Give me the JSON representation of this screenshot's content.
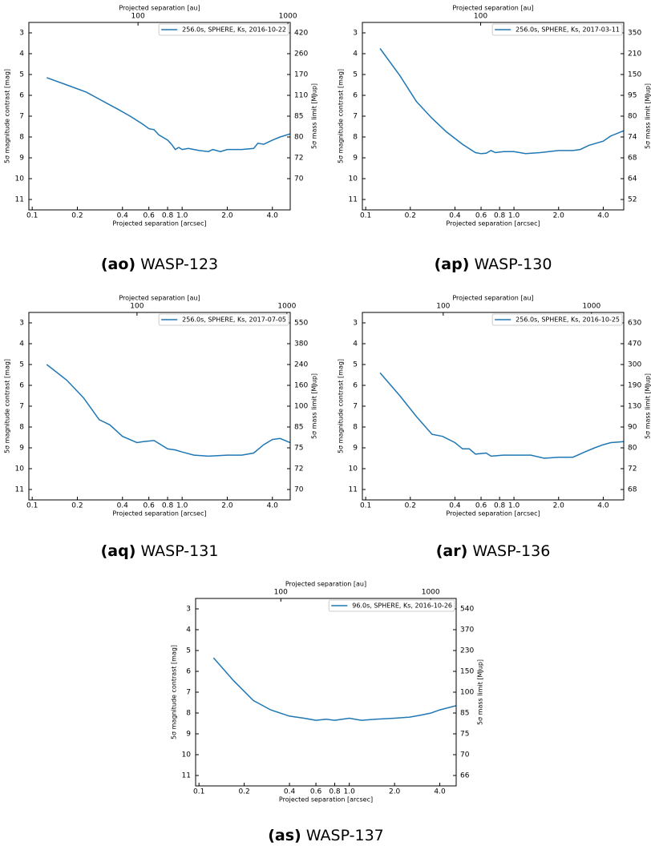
{
  "chart_data": [
    {
      "type": "line",
      "label": "(ao)",
      "title": "WASP-123",
      "xlabel": "Projected separation [arcsec]",
      "ylabel": "5σ magnitude contrast [mag]",
      "x2label": "Projected separation [au]",
      "y2label": "5σ mass limit [MJup]",
      "log_x": true,
      "invert_y": true,
      "legend": "upper right",
      "xlim": [
        0.095,
        5.26
      ],
      "xticks": [
        0.1,
        0.2,
        0.4,
        0.6,
        0.8,
        {
          "value": 1.0,
          "label": "1.0"
        },
        {
          "value": 2.0,
          "label": "2.0"
        },
        {
          "value": 4.0,
          "label": "4.0"
        }
      ],
      "ylim": [
        2.5,
        11.5
      ],
      "yticks": [
        3,
        4,
        5,
        6,
        7,
        8,
        9,
        10,
        11
      ],
      "x2lim": [
        18.7,
        1036
      ],
      "x2ticks": [
        100,
        1000
      ],
      "y2ticks": [
        420,
        260,
        170,
        110,
        85,
        80,
        72,
        70
      ],
      "series": [
        {
          "name": "256.0s, SPHERE, Ks, 2016-10-22",
          "color": "#1f77b4",
          "x": [
            0.125,
            0.17,
            0.23,
            0.3,
            0.38,
            0.45,
            0.55,
            0.6,
            0.65,
            0.7,
            0.8,
            0.85,
            0.9,
            0.95,
            1.0,
            1.1,
            1.3,
            1.5,
            1.6,
            1.8,
            2.0,
            2.5,
            3.0,
            3.2,
            3.5,
            4.0,
            4.5,
            5.26
          ],
          "values": [
            5.15,
            5.5,
            5.85,
            6.3,
            6.7,
            7.0,
            7.4,
            7.6,
            7.65,
            7.9,
            8.15,
            8.35,
            8.6,
            8.5,
            8.6,
            8.55,
            8.65,
            8.7,
            8.6,
            8.7,
            8.6,
            8.6,
            8.55,
            8.3,
            8.35,
            8.15,
            8.0,
            7.85
          ]
        }
      ]
    },
    {
      "type": "line",
      "label": "(ap)",
      "title": "WASP-130",
      "xlabel": "Projected separation [arcsec]",
      "ylabel": "5σ magnitude contrast [mag]",
      "x2label": "Projected separation [au]",
      "y2label": "5σ mass limit [MJup]",
      "log_x": true,
      "invert_y": true,
      "legend": "upper right",
      "xlim": [
        0.095,
        5.5
      ],
      "xticks": [
        0.1,
        0.2,
        0.4,
        0.6,
        0.8,
        {
          "value": 1.0,
          "label": "1.0"
        },
        {
          "value": 2.0,
          "label": "2.0"
        },
        {
          "value": 4.0,
          "label": "4.0"
        }
      ],
      "ylim": [
        2.5,
        11.5
      ],
      "yticks": [
        3,
        4,
        5,
        6,
        7,
        8,
        9,
        10,
        11
      ],
      "x2lim": [
        16,
        918
      ],
      "x2ticks": [
        100
      ],
      "y2ticks": [
        350,
        210,
        150,
        95,
        80,
        74,
        68,
        64,
        52
      ],
      "series": [
        {
          "name": "256.0s, SPHERE, Ks, 2017-03-11",
          "color": "#1f77b4",
          "x": [
            0.125,
            0.17,
            0.22,
            0.28,
            0.35,
            0.45,
            0.55,
            0.6,
            0.65,
            0.7,
            0.75,
            0.85,
            1.0,
            1.2,
            1.5,
            2.0,
            2.5,
            2.8,
            3.2,
            4.0,
            4.5,
            5.5
          ],
          "values": [
            3.75,
            5.05,
            6.3,
            7.1,
            7.75,
            8.35,
            8.75,
            8.8,
            8.78,
            8.65,
            8.75,
            8.7,
            8.7,
            8.8,
            8.75,
            8.65,
            8.65,
            8.6,
            8.4,
            8.2,
            7.95,
            7.7
          ]
        }
      ]
    },
    {
      "type": "line",
      "label": "(aq)",
      "title": "WASP-131",
      "xlabel": "Projected separation [arcsec]",
      "ylabel": "5σ magnitude contrast [mag]",
      "x2label": "Projected separation [au]",
      "y2label": "5σ mass limit [MJup]",
      "log_x": true,
      "invert_y": true,
      "legend": "upper right",
      "xlim": [
        0.095,
        5.26
      ],
      "xticks": [
        0.1,
        0.2,
        0.4,
        0.6,
        0.8,
        {
          "value": 1.0,
          "label": "1.0"
        },
        {
          "value": 2.0,
          "label": "2.0"
        },
        {
          "value": 4.0,
          "label": "4.0"
        }
      ],
      "ylim": [
        2.5,
        11.5
      ],
      "yticks": [
        3,
        4,
        5,
        6,
        7,
        8,
        9,
        10,
        11
      ],
      "x2lim": [
        19,
        1052
      ],
      "x2ticks": [
        100,
        1000
      ],
      "y2ticks": [
        550,
        380,
        240,
        160,
        100,
        85,
        75,
        72,
        70
      ],
      "series": [
        {
          "name": "256.0s, SPHERE, Ks, 2017-07-05",
          "color": "#1f77b4",
          "x": [
            0.125,
            0.17,
            0.22,
            0.28,
            0.33,
            0.4,
            0.5,
            0.55,
            0.65,
            0.8,
            0.9,
            1.0,
            1.2,
            1.5,
            2.0,
            2.5,
            3.0,
            3.5,
            4.0,
            4.5,
            5.26
          ],
          "values": [
            5.0,
            5.75,
            6.6,
            7.65,
            7.9,
            8.45,
            8.75,
            8.7,
            8.65,
            9.05,
            9.1,
            9.2,
            9.35,
            9.4,
            9.35,
            9.35,
            9.25,
            8.85,
            8.6,
            8.55,
            8.75
          ]
        }
      ]
    },
    {
      "type": "line",
      "label": "(ar)",
      "title": "WASP-136",
      "xlabel": "Projected separation [arcsec]",
      "ylabel": "5σ magnitude contrast [mag]",
      "x2label": "Projected separation [au]",
      "y2label": "5σ mass limit [MJup]",
      "log_x": true,
      "invert_y": true,
      "legend": "upper right",
      "xlim": [
        0.095,
        5.5
      ],
      "xticks": [
        0.1,
        0.2,
        0.4,
        0.6,
        0.8,
        {
          "value": 1.0,
          "label": "1.0"
        },
        {
          "value": 2.0,
          "label": "2.0"
        },
        {
          "value": 4.0,
          "label": "4.0"
        }
      ],
      "ylim": [
        2.5,
        11.5
      ],
      "yticks": [
        3,
        4,
        5,
        6,
        7,
        8,
        9,
        10,
        11
      ],
      "x2lim": [
        28.5,
        1650
      ],
      "x2ticks": [
        100,
        1000
      ],
      "y2ticks": [
        630,
        470,
        300,
        190,
        130,
        90,
        80,
        72,
        68
      ],
      "series": [
        {
          "name": "256.0s, SPHERE, Ks, 2016-10-25",
          "color": "#1f77b4",
          "x": [
            0.125,
            0.17,
            0.22,
            0.28,
            0.33,
            0.4,
            0.45,
            0.5,
            0.55,
            0.65,
            0.7,
            0.85,
            1.0,
            1.3,
            1.6,
            2.0,
            2.5,
            3.0,
            3.5,
            4.0,
            4.5,
            5.5
          ],
          "values": [
            5.4,
            6.5,
            7.5,
            8.35,
            8.45,
            8.75,
            9.05,
            9.05,
            9.3,
            9.25,
            9.4,
            9.35,
            9.35,
            9.35,
            9.5,
            9.45,
            9.45,
            9.2,
            9.0,
            8.85,
            8.75,
            8.7
          ]
        }
      ]
    },
    {
      "type": "line",
      "label": "(as)",
      "title": "WASP-137",
      "xlabel": "Projected separation [arcsec]",
      "ylabel": "5σ magnitude contrast [mag]",
      "x2label": "Projected separation [au]",
      "y2label": "5σ mass limit [MJup]",
      "log_x": true,
      "invert_y": true,
      "legend": "upper right",
      "xlim": [
        0.095,
        5.14
      ],
      "xticks": [
        0.1,
        0.2,
        0.4,
        0.6,
        0.8,
        {
          "value": 1.0,
          "label": "1.0"
        },
        {
          "value": 2.0,
          "label": "2.0"
        },
        {
          "value": 4.0,
          "label": "4.0"
        }
      ],
      "ylim": [
        2.5,
        11.5
      ],
      "yticks": [
        3,
        4,
        5,
        6,
        7,
        8,
        9,
        10,
        11
      ],
      "x2lim": [
        27,
        1480
      ],
      "x2ticks": [
        100,
        1000
      ],
      "y2ticks": [
        540,
        370,
        230,
        150,
        100,
        85,
        75,
        70,
        66
      ],
      "series": [
        {
          "name": "96.0s, SPHERE, Ks, 2016-10-26",
          "color": "#1f77b4",
          "x": [
            0.125,
            0.17,
            0.23,
            0.3,
            0.4,
            0.5,
            0.6,
            0.7,
            0.8,
            0.9,
            1.0,
            1.2,
            1.5,
            2.0,
            2.5,
            3.0,
            3.5,
            4.0,
            5.14
          ],
          "values": [
            5.35,
            6.45,
            7.4,
            7.85,
            8.15,
            8.25,
            8.35,
            8.3,
            8.35,
            8.3,
            8.25,
            8.35,
            8.3,
            8.25,
            8.2,
            8.1,
            8.0,
            7.85,
            7.65
          ]
        }
      ]
    }
  ]
}
